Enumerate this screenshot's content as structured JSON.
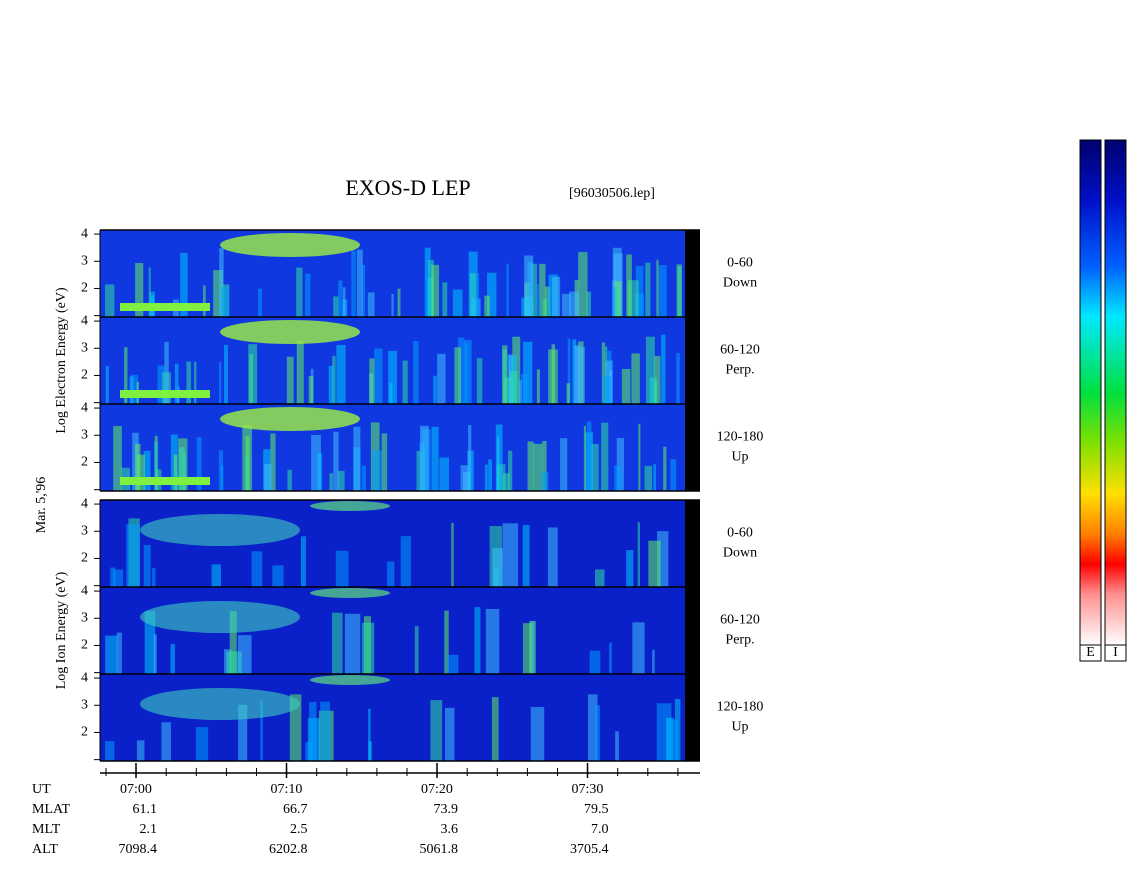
{
  "title": "EXOS-D LEP",
  "file": "[96030506.lep]",
  "date": "Mar. 5,'96",
  "groups": [
    {
      "axis_label": "Log  Electron  Energy  (eV)",
      "panels": [
        {
          "angle": "0-60",
          "direction": "Down"
        },
        {
          "angle": "60-120",
          "direction": "Perp."
        },
        {
          "angle": "120-180",
          "direction": "Up"
        }
      ]
    },
    {
      "axis_label": "Log  Ion  Energy  (eV)",
      "panels": [
        {
          "angle": "0-60",
          "direction": "Down"
        },
        {
          "angle": "60-120",
          "direction": "Perp."
        },
        {
          "angle": "120-180",
          "direction": "Up"
        }
      ]
    }
  ],
  "ylim": [
    0.95,
    4.15
  ],
  "yticks": [
    2,
    3,
    4
  ],
  "orbit": {
    "row_labels": [
      "UT",
      "MLAT",
      "MLT",
      "ALT"
    ],
    "columns": [
      [
        "07:00",
        "61.1",
        "2.1",
        "7098.4"
      ],
      [
        "07:10",
        "66.7",
        "2.5",
        "6202.8"
      ],
      [
        "07:20",
        "73.9",
        "3.6",
        "5061.8"
      ],
      [
        "07:30",
        "79.5",
        "7.0",
        "3705.4"
      ]
    ]
  },
  "colorbar_labels": [
    "E",
    "I"
  ]
}
